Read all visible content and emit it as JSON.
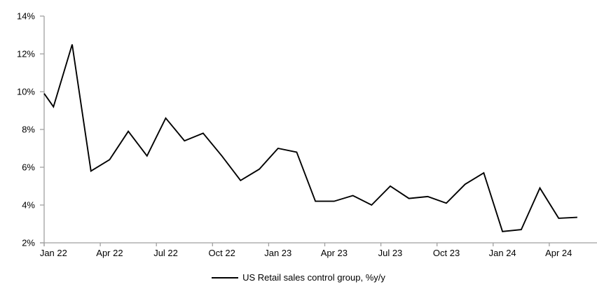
{
  "chart_data": {
    "type": "line",
    "title": "",
    "legend_label": "US Retail sales control group, %y/y",
    "legend_position": "bottom-center",
    "grid": false,
    "ylim": [
      2,
      14
    ],
    "y_tick_step": 2,
    "y_tick_labels": [
      "2%",
      "4%",
      "6%",
      "8%",
      "10%",
      "12%",
      "14%"
    ],
    "x_tick_labels": [
      "Jan 22",
      "Apr 22",
      "Jul 22",
      "Oct 22",
      "Jan 23",
      "Apr 23",
      "Jul 23",
      "Oct 23",
      "Jan 24",
      "Apr 24"
    ],
    "x_label_interval_months": 3,
    "categories": [
      "Jan 22",
      "Feb 22",
      "Mar 22",
      "Apr 22",
      "May 22",
      "Jun 22",
      "Jul 22",
      "Aug 22",
      "Sep 22",
      "Oct 22",
      "Nov 22",
      "Dec 22",
      "Jan 23",
      "Feb 23",
      "Mar 23",
      "Apr 23",
      "May 23",
      "Jun 23",
      "Jul 23",
      "Aug 23",
      "Sep 23",
      "Oct 23",
      "Nov 23",
      "Dec 23",
      "Jan 24",
      "Feb 24",
      "Mar 24",
      "Apr 24",
      "May 24"
    ],
    "series": [
      {
        "name": "US Retail sales control group, %y/y",
        "values": [
          9.2,
          12.5,
          5.8,
          6.4,
          7.9,
          6.6,
          8.6,
          7.4,
          7.8,
          6.6,
          5.3,
          5.9,
          7.0,
          6.8,
          4.2,
          4.2,
          4.5,
          4.0,
          5.0,
          4.35,
          4.45,
          4.1,
          5.1,
          5.7,
          2.6,
          2.7,
          4.9,
          3.3,
          3.35
        ],
        "left_edge_entry_value": 9.9
      }
    ],
    "colors": {
      "line": "#000000",
      "axis": "#a0a0a0",
      "text": "#000000",
      "background": "#ffffff"
    }
  }
}
